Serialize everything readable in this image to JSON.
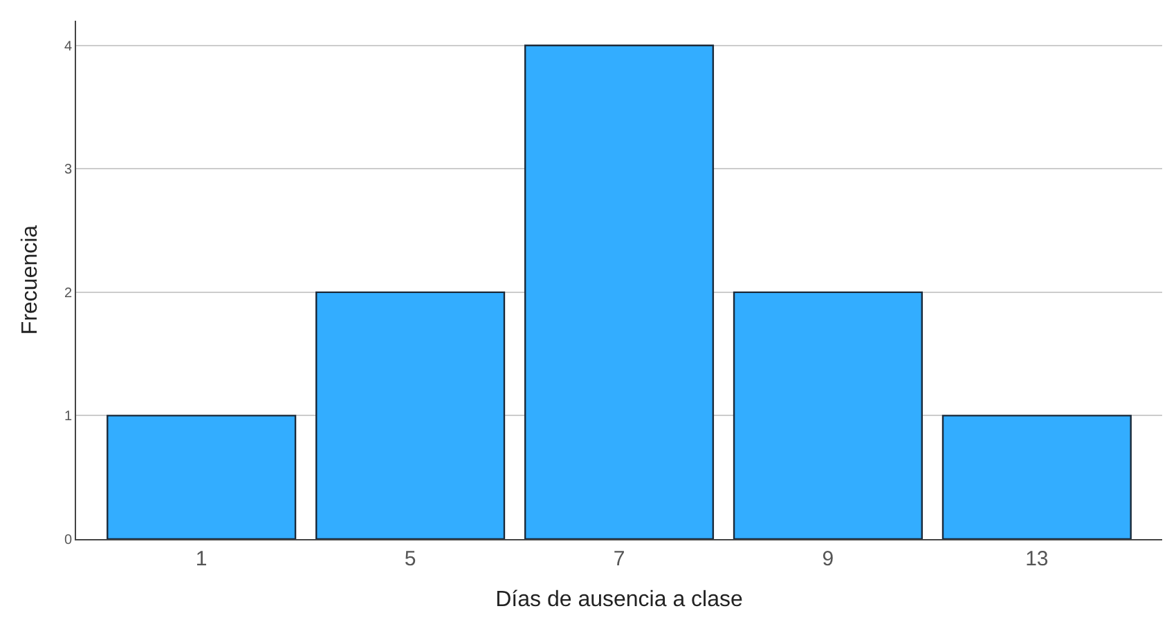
{
  "chart_data": {
    "type": "bar",
    "xlabel": "Días de ausencia a clase",
    "ylabel": "Frecuencia",
    "categories": [
      "1",
      "5",
      "7",
      "9",
      "13"
    ],
    "values": [
      1,
      2,
      4,
      2,
      1
    ],
    "color": "#33adff",
    "ylim": [
      0,
      4.2
    ],
    "yticks": [
      0,
      1,
      2,
      3,
      4
    ],
    "grid": "y"
  }
}
